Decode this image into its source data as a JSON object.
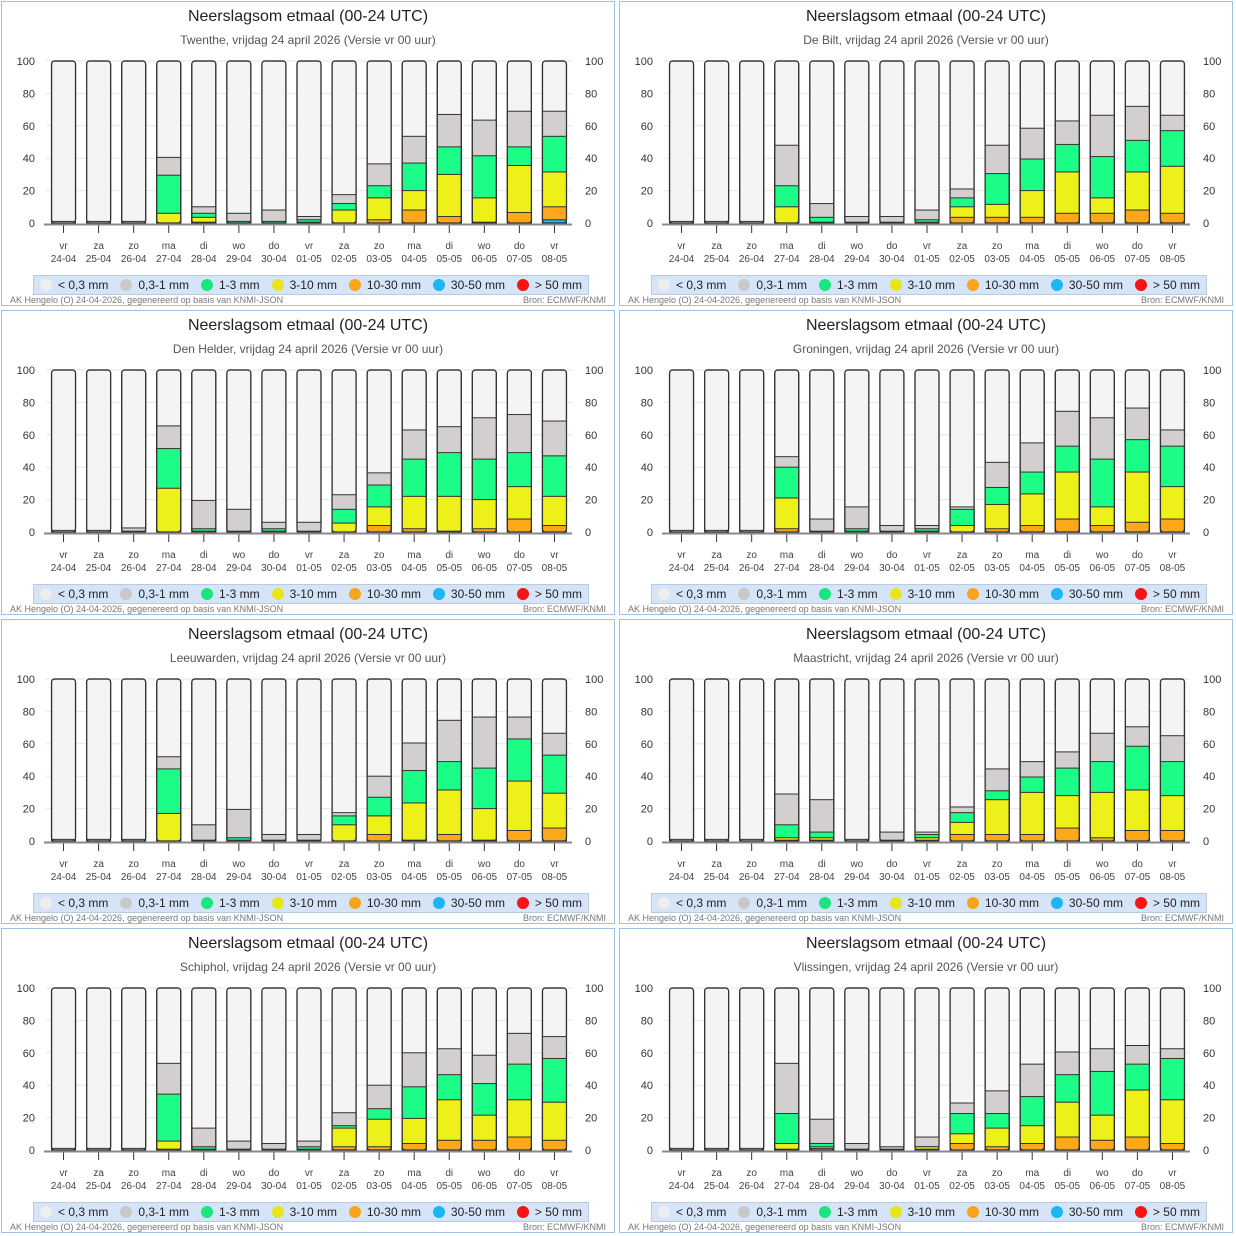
{
  "chart_data": {
    "type": "bar",
    "stacked": true,
    "title": "Neerslagsom etmaal (00-24 UTC)",
    "ylim": [
      0,
      100
    ],
    "yticks": [
      0,
      20,
      40,
      60,
      80,
      100
    ],
    "ylabel": "",
    "xlabel": "",
    "grid": true,
    "legend_position": "bottom",
    "categories_day": [
      "vr",
      "za",
      "zo",
      "ma",
      "di",
      "wo",
      "do",
      "vr",
      "za",
      "zo",
      "ma",
      "di",
      "wo",
      "do",
      "vr"
    ],
    "categories_date": [
      "24-04",
      "25-04",
      "26-04",
      "27-04",
      "28-04",
      "29-04",
      "30-04",
      "01-05",
      "02-05",
      "03-05",
      "04-05",
      "05-05",
      "06-05",
      "07-05",
      "08-05"
    ],
    "legend": [
      {
        "key": "lt03",
        "label": "< 0,3 mm",
        "color": "#f4f4f4",
        "dot": "#eeeeef"
      },
      {
        "key": "gr",
        "label": "0,3-1 mm",
        "color": "#d3cfcf",
        "dot": "#c9c9c9"
      },
      {
        "key": "g",
        "label": "1-3 mm",
        "color": "#1bfd86",
        "dot": "#1be57e"
      },
      {
        "key": "y",
        "label": "3-10 mm",
        "color": "#eef01a",
        "dot": "#e8e61a"
      },
      {
        "key": "o",
        "label": "10-30 mm",
        "color": "#fda81a",
        "dot": "#f9a41d"
      },
      {
        "key": "b",
        "label": "30-50 mm",
        "color": "#1ab6f5",
        "dot": "#1ab6f5"
      },
      {
        "key": "r",
        "label": "> 50 mm",
        "color": "#f81414",
        "dot": "#f81414"
      }
    ],
    "value_note": "Each bar is a cumulative probability stack (percent). Values are cumulative tops of each band from the bottom: b=30-50 mm top, o=10-30 mm top, y=3-10 mm top, g=1-3 mm top, gr=0,3-1 mm top; remainder up to 100 is < 0,3 mm.",
    "panels": [
      {
        "station": "Twenthe",
        "subtitle": "Twenthe, vrijdag 24 april 2026 (Versie vr 00 uur)",
        "bars": [
          {
            "b": 0,
            "o": 0,
            "y": 0,
            "g": 0,
            "gr": 1
          },
          {
            "b": 0,
            "o": 0,
            "y": 0,
            "g": 0,
            "gr": 1
          },
          {
            "b": 0,
            "o": 0,
            "y": 0,
            "g": 0,
            "gr": 1
          },
          {
            "b": 0,
            "o": 0,
            "y": 6,
            "g": 29.5,
            "gr": 40.5
          },
          {
            "b": 0,
            "o": 0.5,
            "y": 3.5,
            "g": 6,
            "gr": 10
          },
          {
            "b": 0,
            "o": 0,
            "y": 0,
            "g": 1,
            "gr": 6
          },
          {
            "b": 0,
            "o": 0,
            "y": 0,
            "g": 1,
            "gr": 8
          },
          {
            "b": 0,
            "o": 0,
            "y": 0.5,
            "g": 2,
            "gr": 4
          },
          {
            "b": 0,
            "o": 0,
            "y": 8,
            "g": 12,
            "gr": 17.5
          },
          {
            "b": 0,
            "o": 2,
            "y": 15.5,
            "g": 23,
            "gr": 36.5
          },
          {
            "b": 0,
            "o": 8,
            "y": 20,
            "g": 37,
            "gr": 53.5
          },
          {
            "b": 0,
            "o": 4,
            "y": 30,
            "g": 47,
            "gr": 67
          },
          {
            "b": 0,
            "o": 0.5,
            "y": 15.5,
            "g": 41.5,
            "gr": 63.5
          },
          {
            "b": 0,
            "o": 6.5,
            "y": 35.5,
            "g": 47,
            "gr": 69
          },
          {
            "b": 2,
            "o": 10,
            "y": 31.5,
            "g": 53.5,
            "gr": 69
          }
        ]
      },
      {
        "station": "De Bilt",
        "subtitle": "De Bilt, vrijdag 24 april 2026 (Versie vr 00 uur)",
        "bars": [
          {
            "b": 0,
            "o": 0,
            "y": 0,
            "g": 0,
            "gr": 1
          },
          {
            "b": 0,
            "o": 0,
            "y": 0,
            "g": 0,
            "gr": 1
          },
          {
            "b": 0,
            "o": 0,
            "y": 0,
            "g": 0,
            "gr": 1
          },
          {
            "b": 0,
            "o": 0,
            "y": 10,
            "g": 23,
            "gr": 48
          },
          {
            "b": 0,
            "o": 0,
            "y": 0.5,
            "g": 3.5,
            "gr": 12
          },
          {
            "b": 0,
            "o": 0,
            "y": 0,
            "g": 0.5,
            "gr": 4
          },
          {
            "b": 0,
            "o": 0,
            "y": 0,
            "g": 0.5,
            "gr": 4
          },
          {
            "b": 0,
            "o": 0,
            "y": 0.5,
            "g": 2,
            "gr": 8
          },
          {
            "b": 0,
            "o": 3.5,
            "y": 10,
            "g": 15.5,
            "gr": 21
          },
          {
            "b": 0,
            "o": 3.5,
            "y": 11.5,
            "g": 30.5,
            "gr": 48
          },
          {
            "b": 0,
            "o": 3.5,
            "y": 20,
            "g": 39.5,
            "gr": 58.5
          },
          {
            "b": 0,
            "o": 6,
            "y": 31.5,
            "g": 48.5,
            "gr": 63
          },
          {
            "b": 0,
            "o": 6,
            "y": 15.5,
            "g": 41,
            "gr": 66.5
          },
          {
            "b": 0,
            "o": 8,
            "y": 31.5,
            "g": 51,
            "gr": 72
          },
          {
            "b": 0,
            "o": 6,
            "y": 35,
            "g": 57,
            "gr": 66.5
          }
        ]
      },
      {
        "station": "Den Helder",
        "subtitle": "Den Helder, vrijdag 24 april 2026 (Versie vr 00 uur)",
        "bars": [
          {
            "b": 0,
            "o": 0,
            "y": 0,
            "g": 0,
            "gr": 1
          },
          {
            "b": 0,
            "o": 0,
            "y": 0,
            "g": 0,
            "gr": 1
          },
          {
            "b": 0,
            "o": 0,
            "y": 0,
            "g": 0.5,
            "gr": 2.5
          },
          {
            "b": 0,
            "o": 0,
            "y": 27,
            "g": 51.5,
            "gr": 65.5
          },
          {
            "b": 0,
            "o": 0,
            "y": 0.5,
            "g": 2,
            "gr": 19.5
          },
          {
            "b": 0,
            "o": 0,
            "y": 0,
            "g": 0.5,
            "gr": 14
          },
          {
            "b": 0,
            "o": 0,
            "y": 0.5,
            "g": 2,
            "gr": 6
          },
          {
            "b": 0,
            "o": 0,
            "y": 0,
            "g": 0.5,
            "gr": 6
          },
          {
            "b": 0,
            "o": 0,
            "y": 5.5,
            "g": 14,
            "gr": 23
          },
          {
            "b": 0,
            "o": 4,
            "y": 15.5,
            "g": 29,
            "gr": 36.5
          },
          {
            "b": 0,
            "o": 2,
            "y": 22,
            "g": 45,
            "gr": 63
          },
          {
            "b": 0,
            "o": 0.5,
            "y": 22,
            "g": 49,
            "gr": 65
          },
          {
            "b": 0,
            "o": 2,
            "y": 20,
            "g": 45,
            "gr": 70.5
          },
          {
            "b": 0,
            "o": 8,
            "y": 28,
            "g": 49,
            "gr": 72.5
          },
          {
            "b": 0,
            "o": 4,
            "y": 22,
            "g": 47,
            "gr": 68.5
          }
        ]
      },
      {
        "station": "Groningen",
        "subtitle": "Groningen, vrijdag 24 april 2026 (Versie vr 00 uur)",
        "bars": [
          {
            "b": 0,
            "o": 0,
            "y": 0,
            "g": 0,
            "gr": 1
          },
          {
            "b": 0,
            "o": 0,
            "y": 0,
            "g": 0,
            "gr": 1
          },
          {
            "b": 0,
            "o": 0,
            "y": 0,
            "g": 0,
            "gr": 1
          },
          {
            "b": 0,
            "o": 2,
            "y": 21,
            "g": 40,
            "gr": 46.5
          },
          {
            "b": 0,
            "o": 0,
            "y": 0,
            "g": 0.5,
            "gr": 8
          },
          {
            "b": 0,
            "o": 0,
            "y": 0.5,
            "g": 2,
            "gr": 15.5
          },
          {
            "b": 0,
            "o": 0,
            "y": 0,
            "g": 0.5,
            "gr": 4
          },
          {
            "b": 0,
            "o": 0,
            "y": 0.5,
            "g": 2,
            "gr": 4
          },
          {
            "b": 0,
            "o": 0,
            "y": 4,
            "g": 14,
            "gr": 15.5
          },
          {
            "b": 0,
            "o": 2,
            "y": 17,
            "g": 27.5,
            "gr": 43
          },
          {
            "b": 0,
            "o": 4,
            "y": 23.5,
            "g": 37,
            "gr": 55
          },
          {
            "b": 0,
            "o": 8,
            "y": 37,
            "g": 53,
            "gr": 74.5
          },
          {
            "b": 0,
            "o": 4,
            "y": 15.5,
            "g": 45,
            "gr": 70.5
          },
          {
            "b": 0,
            "o": 6,
            "y": 37,
            "g": 57,
            "gr": 76.5
          },
          {
            "b": 0,
            "o": 8,
            "y": 28,
            "g": 53,
            "gr": 63
          }
        ]
      },
      {
        "station": "Leeuwarden",
        "subtitle": "Leeuwarden, vrijdag 24 april 2026 (Versie vr 00 uur)",
        "bars": [
          {
            "b": 0,
            "o": 0,
            "y": 0,
            "g": 0,
            "gr": 1
          },
          {
            "b": 0,
            "o": 0,
            "y": 0,
            "g": 0,
            "gr": 1
          },
          {
            "b": 0,
            "o": 0,
            "y": 0,
            "g": 0,
            "gr": 1
          },
          {
            "b": 0,
            "o": 0,
            "y": 17,
            "g": 44.5,
            "gr": 52
          },
          {
            "b": 0,
            "o": 0,
            "y": 0,
            "g": 0.5,
            "gr": 10
          },
          {
            "b": 0,
            "o": 0,
            "y": 0.5,
            "g": 2,
            "gr": 19.5
          },
          {
            "b": 0,
            "o": 0,
            "y": 0,
            "g": 0.5,
            "gr": 4
          },
          {
            "b": 0,
            "o": 0,
            "y": 0,
            "g": 0.5,
            "gr": 4
          },
          {
            "b": 0,
            "o": 0,
            "y": 10,
            "g": 15.5,
            "gr": 17.5
          },
          {
            "b": 0,
            "o": 4,
            "y": 15.5,
            "g": 27,
            "gr": 40
          },
          {
            "b": 0,
            "o": 0.5,
            "y": 23.5,
            "g": 43.5,
            "gr": 60.5
          },
          {
            "b": 0,
            "o": 4,
            "y": 31.5,
            "g": 49,
            "gr": 74.5
          },
          {
            "b": 0,
            "o": 0.5,
            "y": 20,
            "g": 45,
            "gr": 76.5
          },
          {
            "b": 0,
            "o": 6.5,
            "y": 37,
            "g": 63,
            "gr": 76.5
          },
          {
            "b": 0,
            "o": 8,
            "y": 29.5,
            "g": 53,
            "gr": 66.5
          }
        ]
      },
      {
        "station": "Maastricht",
        "subtitle": "Maastricht, vrijdag 24 april 2026 (Versie vr 00 uur)",
        "bars": [
          {
            "b": 0,
            "o": 0,
            "y": 0,
            "g": 0,
            "gr": 1
          },
          {
            "b": 0,
            "o": 0,
            "y": 0,
            "g": 0,
            "gr": 1
          },
          {
            "b": 0,
            "o": 0,
            "y": 0,
            "g": 0,
            "gr": 1
          },
          {
            "b": 0,
            "o": 0.5,
            "y": 2,
            "g": 10,
            "gr": 29
          },
          {
            "b": 0,
            "o": 0.5,
            "y": 2,
            "g": 5.5,
            "gr": 25.5
          },
          {
            "b": 0,
            "o": 0,
            "y": 0,
            "g": 0,
            "gr": 1
          },
          {
            "b": 0,
            "o": 0,
            "y": 0,
            "g": 0.5,
            "gr": 5.5
          },
          {
            "b": 0,
            "o": 0.5,
            "y": 2,
            "g": 4,
            "gr": 5.5
          },
          {
            "b": 0,
            "o": 4,
            "y": 11.5,
            "g": 17.5,
            "gr": 21
          },
          {
            "b": 0,
            "o": 4,
            "y": 25.5,
            "g": 31,
            "gr": 44.5
          },
          {
            "b": 0,
            "o": 4,
            "y": 30,
            "g": 39.5,
            "gr": 49
          },
          {
            "b": 0,
            "o": 8,
            "y": 28,
            "g": 45,
            "gr": 55
          },
          {
            "b": 0,
            "o": 2,
            "y": 30,
            "g": 49,
            "gr": 66.5
          },
          {
            "b": 0,
            "o": 6.5,
            "y": 31.5,
            "g": 58.5,
            "gr": 70.5
          },
          {
            "b": 0,
            "o": 6.5,
            "y": 28,
            "g": 49,
            "gr": 65
          }
        ]
      },
      {
        "station": "Schiphol",
        "subtitle": "Schiphol, vrijdag 24 april 2026 (Versie vr 00 uur)",
        "bars": [
          {
            "b": 0,
            "o": 0,
            "y": 0,
            "g": 0,
            "gr": 1
          },
          {
            "b": 0,
            "o": 0,
            "y": 0,
            "g": 0,
            "gr": 1
          },
          {
            "b": 0,
            "o": 0,
            "y": 0,
            "g": 0,
            "gr": 1
          },
          {
            "b": 0,
            "o": 0.5,
            "y": 5.5,
            "g": 34.5,
            "gr": 53.5
          },
          {
            "b": 0,
            "o": 0,
            "y": 0.5,
            "g": 2,
            "gr": 13.5
          },
          {
            "b": 0,
            "o": 0,
            "y": 0,
            "g": 0.5,
            "gr": 5.5
          },
          {
            "b": 0,
            "o": 0,
            "y": 0,
            "g": 0.5,
            "gr": 4
          },
          {
            "b": 0,
            "o": 0,
            "y": 0.5,
            "g": 2,
            "gr": 5.5
          },
          {
            "b": 0,
            "o": 2,
            "y": 13.5,
            "g": 15,
            "gr": 23
          },
          {
            "b": 0,
            "o": 2,
            "y": 19,
            "g": 25.5,
            "gr": 40
          },
          {
            "b": 0,
            "o": 4,
            "y": 19.5,
            "g": 39,
            "gr": 60
          },
          {
            "b": 0,
            "o": 6,
            "y": 31,
            "g": 46.5,
            "gr": 62.5
          },
          {
            "b": 0,
            "o": 6,
            "y": 21.5,
            "g": 41,
            "gr": 58.5
          },
          {
            "b": 0,
            "o": 8,
            "y": 31,
            "g": 53,
            "gr": 72
          },
          {
            "b": 0,
            "o": 6,
            "y": 29.5,
            "g": 56.5,
            "gr": 70
          }
        ]
      },
      {
        "station": "Vlissingen",
        "subtitle": "Vlissingen, vrijdag 24 april 2026 (Versie vr 00 uur)",
        "bars": [
          {
            "b": 0,
            "o": 0,
            "y": 0,
            "g": 0,
            "gr": 1
          },
          {
            "b": 0,
            "o": 0,
            "y": 0,
            "g": 0,
            "gr": 1
          },
          {
            "b": 0,
            "o": 0,
            "y": 0,
            "g": 0,
            "gr": 1
          },
          {
            "b": 0,
            "o": 0.5,
            "y": 4,
            "g": 22.5,
            "gr": 53.5
          },
          {
            "b": 0,
            "o": 1,
            "y": 2,
            "g": 4,
            "gr": 19
          },
          {
            "b": 0,
            "o": 0,
            "y": 0,
            "g": 0.5,
            "gr": 4
          },
          {
            "b": 0,
            "o": 0,
            "y": 0,
            "g": 0.5,
            "gr": 2
          },
          {
            "b": 0,
            "o": 0.5,
            "y": 2,
            "g": 2,
            "gr": 8
          },
          {
            "b": 0,
            "o": 4,
            "y": 10,
            "g": 22.5,
            "gr": 29
          },
          {
            "b": 0,
            "o": 2,
            "y": 13.5,
            "g": 22.5,
            "gr": 36.5
          },
          {
            "b": 0,
            "o": 4,
            "y": 15,
            "g": 33,
            "gr": 53
          },
          {
            "b": 0,
            "o": 8,
            "y": 29.5,
            "g": 46.5,
            "gr": 60.5
          },
          {
            "b": 0,
            "o": 6,
            "y": 21.5,
            "g": 48.5,
            "gr": 62.5
          },
          {
            "b": 0,
            "o": 8,
            "y": 37,
            "g": 53,
            "gr": 64.5
          },
          {
            "b": 0,
            "o": 4,
            "y": 31,
            "g": 56.5,
            "gr": 62.5
          }
        ]
      }
    ]
  },
  "footer": {
    "left": "AK Hengelo (O) 24-04-2026, gegenereerd op basis van KNMI-JSON",
    "right": "Bron: ECMWF/KNMI"
  },
  "colors": {
    "panel_border": "#9ec1e6",
    "legend_bg": "#d6e4f7",
    "bar_outline": "#333333",
    "grid": "#e6e6e6",
    "axis": "#888888"
  }
}
